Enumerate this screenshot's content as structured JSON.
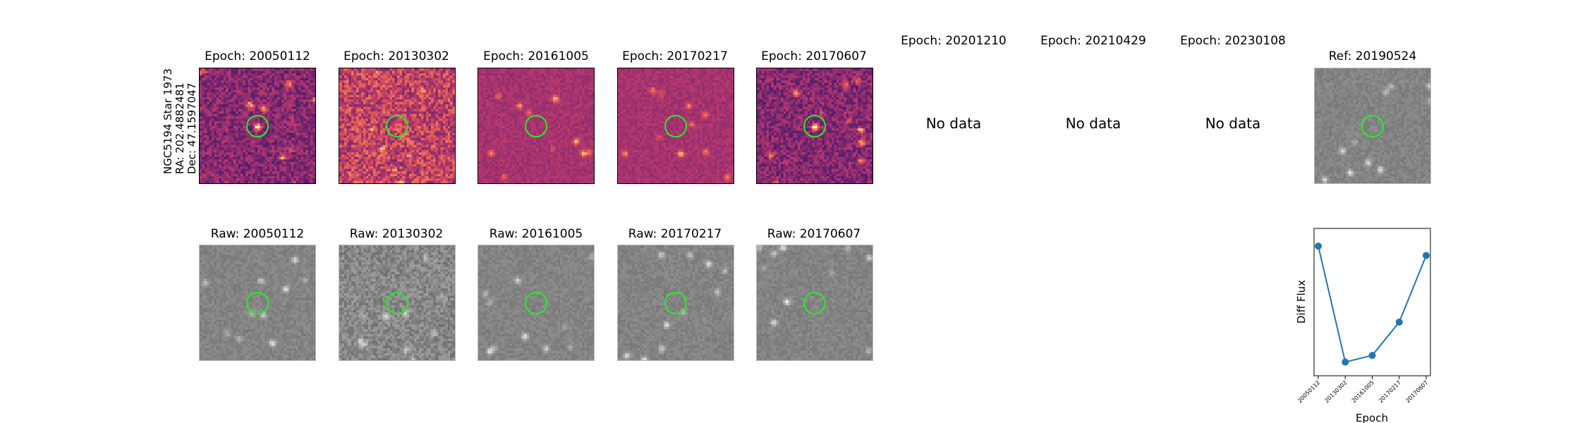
{
  "target": {
    "lines": [
      "NGC5194 Star 1973",
      "RA: 202.4882481",
      "Dec: 47.1597047"
    ]
  },
  "diff_panels": [
    {
      "title": "Epoch: 20050112",
      "has_data": true,
      "style": "diff"
    },
    {
      "title": "Epoch: 20130302",
      "has_data": true,
      "style": "diff"
    },
    {
      "title": "Epoch: 20161005",
      "has_data": true,
      "style": "diff"
    },
    {
      "title": "Epoch: 20170217",
      "has_data": true,
      "style": "diff"
    },
    {
      "title": "Epoch: 20170607",
      "has_data": true,
      "style": "diff"
    },
    {
      "title": "Epoch: 20201210",
      "has_data": false
    },
    {
      "title": "Epoch: 20210429",
      "has_data": false
    },
    {
      "title": "Epoch: 20230108",
      "has_data": false
    }
  ],
  "reference_panel": {
    "title": "Ref: 20190524",
    "style": "gray"
  },
  "raw_panels": [
    {
      "title": "Raw: 20050112"
    },
    {
      "title": "Raw: 20130302"
    },
    {
      "title": "Raw: 20161005"
    },
    {
      "title": "Raw: 20170217"
    },
    {
      "title": "Raw: 20170607"
    }
  ],
  "no_data_text": "No data",
  "colors": {
    "ring": "#22ee22",
    "series": "#1f77b4"
  },
  "chart_data": {
    "type": "line",
    "categories": [
      "20050112",
      "20130302",
      "20161005",
      "20170217",
      "20170607"
    ],
    "values": [
      0.92,
      0.05,
      0.1,
      0.35,
      0.85
    ],
    "xlabel": "Epoch",
    "ylabel": "Diff Flux",
    "ylim": [
      0.0,
      1.0
    ],
    "y_ticks_shown": false,
    "grid": false,
    "marker": "circle"
  }
}
